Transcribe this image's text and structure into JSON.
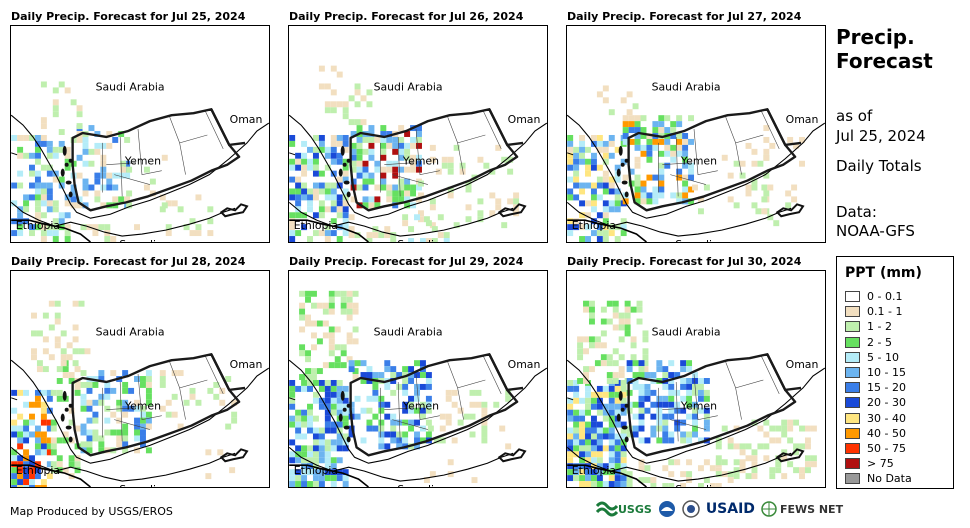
{
  "panels": [
    {
      "title": "Daily Precip. Forecast for Jul 25, 2024"
    },
    {
      "title": "Daily Precip. Forecast for Jul 26, 2024"
    },
    {
      "title": "Daily Precip. Forecast for Jul 27, 2024"
    },
    {
      "title": "Daily Precip. Forecast for Jul 28, 2024"
    },
    {
      "title": "Daily Precip. Forecast for Jul 29, 2024"
    },
    {
      "title": "Daily Precip. Forecast for Jul 30, 2024"
    }
  ],
  "map_labels": {
    "saudi_arabia": "Saudi Arabia",
    "oman": "Oman",
    "yemen": "Yemen",
    "ethiopia": "Ethiopia",
    "somalia": "Somalia"
  },
  "sidebar": {
    "title_line1": "Precip.",
    "title_line2": "Forecast",
    "as_of": "as of",
    "date": "Jul 25, 2024",
    "totals": "Daily Totals",
    "data_label": "Data:",
    "data_source": "NOAA-GFS"
  },
  "legend": {
    "title": "PPT (mm)",
    "items": [
      {
        "label": "0 - 0.1",
        "color": "#ffffff"
      },
      {
        "label": "0.1 - 1",
        "color": "#f2dfc0"
      },
      {
        "label": "1 - 2",
        "color": "#bfefae"
      },
      {
        "label": "2 - 5",
        "color": "#66e060"
      },
      {
        "label": "5 - 10",
        "color": "#b4ecf8"
      },
      {
        "label": "10 - 15",
        "color": "#6cb4f0"
      },
      {
        "label": "15 - 20",
        "color": "#3a7ee8"
      },
      {
        "label": "20 - 30",
        "color": "#1a4ad8"
      },
      {
        "label": "30 - 40",
        "color": "#ffe680"
      },
      {
        "label": "40 - 50",
        "color": "#ff9900"
      },
      {
        "label": "50 - 75",
        "color": "#ff3300"
      },
      {
        "label": "> 75",
        "color": "#b01010"
      },
      {
        "label": "No Data",
        "color": "#999999"
      }
    ]
  },
  "footer": {
    "credit": "Map Produced by USGS/EROS",
    "logos": [
      "USGS",
      "USAID",
      "FEWS NET"
    ]
  }
}
